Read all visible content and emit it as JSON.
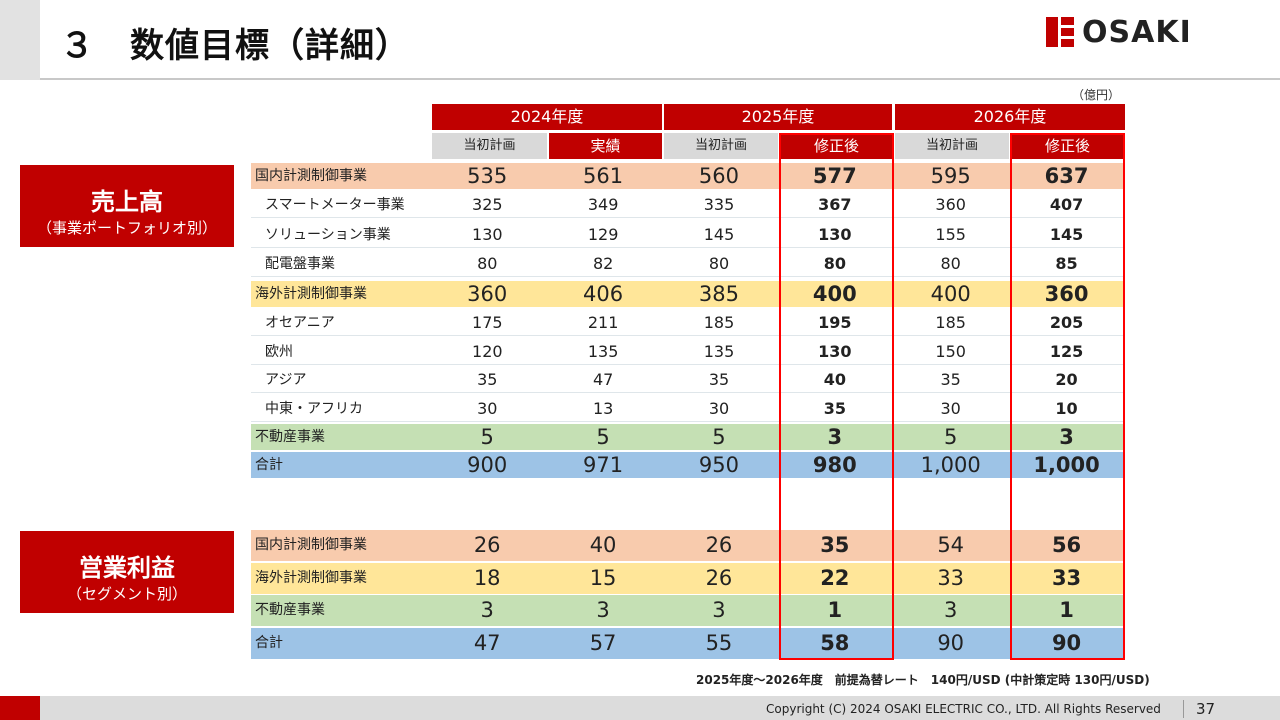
{
  "header": {
    "title": "３　数値目標（詳細）",
    "logo_text": "OSAKI"
  },
  "unit": "（億円）",
  "years": [
    "2024年度",
    "2025年度",
    "2026年度"
  ],
  "col_headers": [
    "当初計画",
    "実績",
    "当初計画",
    "修正後",
    "当初計画",
    "修正後"
  ],
  "sales": {
    "label": "売上高",
    "sublabel": "（事業ポートフォリオ別）",
    "rows": [
      {
        "label": "国内計測制御事業",
        "values": [
          "535",
          "561",
          "560",
          "577",
          "595",
          "637"
        ]
      },
      {
        "label": "スマートメーター事業",
        "values": [
          "325",
          "349",
          "335",
          "367",
          "360",
          "407"
        ]
      },
      {
        "label": "ソリューション事業",
        "values": [
          "130",
          "129",
          "145",
          "130",
          "155",
          "145"
        ]
      },
      {
        "label": "配電盤事業",
        "values": [
          "80",
          "82",
          "80",
          "80",
          "80",
          "85"
        ]
      },
      {
        "label": "海外計測制御事業",
        "values": [
          "360",
          "406",
          "385",
          "400",
          "400",
          "360"
        ]
      },
      {
        "label": "オセアニア",
        "values": [
          "175",
          "211",
          "185",
          "195",
          "185",
          "205"
        ]
      },
      {
        "label": "欧州",
        "values": [
          "120",
          "135",
          "135",
          "130",
          "150",
          "125"
        ]
      },
      {
        "label": "アジア",
        "values": [
          "35",
          "47",
          "35",
          "40",
          "35",
          "20"
        ]
      },
      {
        "label": "中東・アフリカ",
        "values": [
          "30",
          "13",
          "30",
          "35",
          "30",
          "10"
        ]
      },
      {
        "label": "不動産事業",
        "values": [
          "5",
          "5",
          "5",
          "3",
          "5",
          "3"
        ]
      },
      {
        "label": "合計",
        "values": [
          "900",
          "971",
          "950",
          "980",
          "1,000",
          "1,000"
        ]
      }
    ]
  },
  "profit": {
    "label": "営業利益",
    "sublabel": "（セグメント別）",
    "rows": [
      {
        "label": "国内計測制御事業",
        "values": [
          "26",
          "40",
          "26",
          "35",
          "54",
          "56"
        ]
      },
      {
        "label": "海外計測制御事業",
        "values": [
          "18",
          "15",
          "26",
          "22",
          "33",
          "33"
        ]
      },
      {
        "label": "不動産事業",
        "values": [
          "3",
          "3",
          "3",
          "1",
          "3",
          "1"
        ]
      },
      {
        "label": "合計",
        "values": [
          "47",
          "57",
          "55",
          "58",
          "90",
          "90"
        ]
      }
    ]
  },
  "note": "2025年度～2026年度　前提為替レート　140円/USD (中計策定時 130円/USD)",
  "footer": {
    "copyright": "Copyright (C) 2024 OSAKI ELECTRIC CO., LTD. All Rights Reserved",
    "page": "37"
  },
  "colors": {
    "accent": "#c00000",
    "domestic": "#f8cbad",
    "overseas": "#ffe699",
    "real_estate": "#c5e0b4",
    "total": "#9dc3e6",
    "highlight": "#ff0000"
  }
}
